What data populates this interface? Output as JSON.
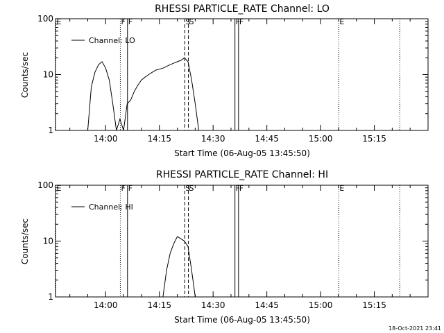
{
  "chart_data": [
    {
      "type": "line",
      "title": "RHESSI PARTICLE_RATE Channel: LO",
      "xlabel": "Start Time (06-Aug-05 13:45:50)",
      "ylabel": "Counts/sec",
      "yscale": "log",
      "ylim": [
        1,
        100
      ],
      "xlim": [
        "13:46",
        "15:30"
      ],
      "grid": false,
      "legend_position": "top-left",
      "x_ticks": [
        "14:00",
        "14:15",
        "14:30",
        "14:45",
        "15:00",
        "15:15"
      ],
      "y_ticks": [
        "1",
        "10",
        "100"
      ],
      "markers": [
        {
          "label": "E",
          "time": "13:46",
          "style": "dotted"
        },
        {
          "label": "F",
          "time": "14:04",
          "style": "dotted"
        },
        {
          "label": "F",
          "time": "14:06",
          "style": "solid"
        },
        {
          "label": "S",
          "time": "14:22",
          "style": "dashed"
        },
        {
          "label": "S",
          "time": "14:23",
          "style": "dashed"
        },
        {
          "label": "F",
          "time": "14:36",
          "style": "solid"
        },
        {
          "label": "F",
          "time": "14:37",
          "style": "solid"
        },
        {
          "label": "E",
          "time": "15:05",
          "style": "dotted"
        },
        {
          "label": "",
          "time": "15:22",
          "style": "dotted"
        }
      ],
      "series": [
        {
          "name": "Channel: LO",
          "x": [
            "13:55",
            "13:56",
            "13:57",
            "13:58",
            "13:59",
            "14:00",
            "14:01",
            "14:02",
            "14:03",
            "14:04",
            "14:05",
            "14:06",
            "14:07",
            "14:08",
            "14:09",
            "14:10",
            "14:11",
            "14:12",
            "14:13",
            "14:14",
            "14:15",
            "14:16",
            "14:17",
            "14:18",
            "14:19",
            "14:20",
            "14:21",
            "14:22",
            "14:23",
            "14:24",
            "14:25",
            "14:26"
          ],
          "values": [
            1,
            6,
            11,
            15,
            17,
            13,
            8,
            3,
            1,
            1.6,
            1,
            3,
            3.5,
            5,
            6.5,
            8,
            9,
            10,
            11,
            12,
            12.5,
            13,
            14,
            15,
            16,
            17,
            18,
            20,
            17,
            8,
            3,
            1
          ]
        }
      ]
    },
    {
      "type": "line",
      "title": "RHESSI PARTICLE_RATE Channel: HI",
      "xlabel": "Start Time (06-Aug-05 13:45:50)",
      "ylabel": "Counts/sec",
      "yscale": "log",
      "ylim": [
        1,
        100
      ],
      "xlim": [
        "13:46",
        "15:30"
      ],
      "grid": false,
      "legend_position": "top-left",
      "x_ticks": [
        "14:00",
        "14:15",
        "14:30",
        "14:45",
        "15:00",
        "15:15"
      ],
      "y_ticks": [
        "1",
        "10",
        "100"
      ],
      "markers": [
        {
          "label": "E",
          "time": "13:46",
          "style": "dotted"
        },
        {
          "label": "F",
          "time": "14:04",
          "style": "dotted"
        },
        {
          "label": "F",
          "time": "14:06",
          "style": "solid"
        },
        {
          "label": "S",
          "time": "14:22",
          "style": "dashed"
        },
        {
          "label": "S",
          "time": "14:23",
          "style": "dashed"
        },
        {
          "label": "F",
          "time": "14:36",
          "style": "solid"
        },
        {
          "label": "F",
          "time": "14:37",
          "style": "solid"
        },
        {
          "label": "E",
          "time": "15:05",
          "style": "dotted"
        },
        {
          "label": "",
          "time": "15:22",
          "style": "dotted"
        }
      ],
      "series": [
        {
          "name": "Channel: HI",
          "x": [
            "14:16",
            "14:17",
            "14:18",
            "14:19",
            "14:20",
            "14:21",
            "14:22",
            "14:23",
            "14:24",
            "14:25"
          ],
          "values": [
            1,
            3,
            6,
            9,
            12,
            11,
            10,
            8,
            3,
            1
          ]
        }
      ]
    }
  ],
  "footer": {
    "timestamp": "18-Oct-2021 23:41"
  }
}
